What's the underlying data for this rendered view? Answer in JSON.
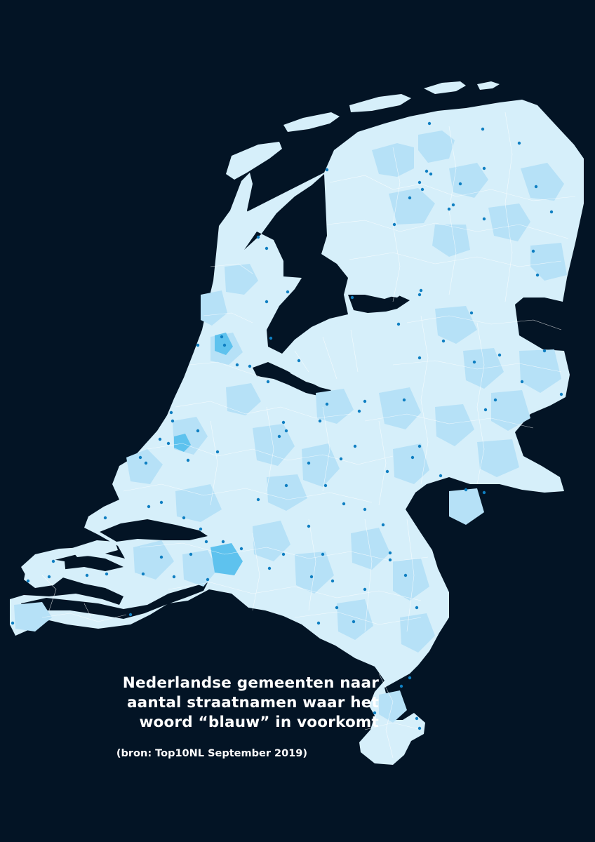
{
  "title_lines": [
    "Nederlandse gemeenten naar",
    "aantal straatnamen waar het",
    "woord “blauw” in voorkomt"
  ],
  "source": "(bron: Top10NL September 2019)",
  "colors": {
    "background": "#031425",
    "category_low": "#d6effa",
    "category_mid": "#b6e1f7",
    "category_high": "#5ec2ee",
    "street_dot": "#0f7fc2",
    "border": "#ffffff"
  }
}
